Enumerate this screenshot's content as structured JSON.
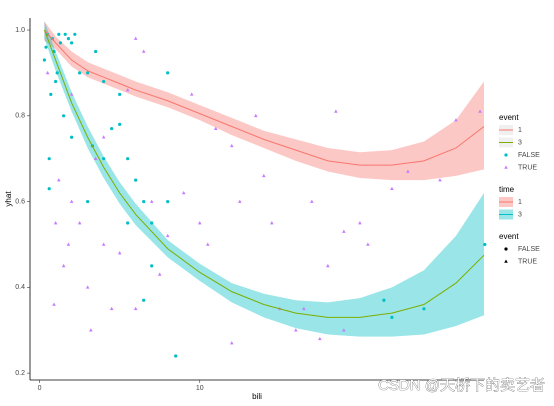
{
  "chart_data": {
    "type": "scatter",
    "x_label": "bili",
    "y_label": "yhat",
    "xlim": [
      -0.6,
      27.75
    ],
    "ylim": [
      0.184,
      1.028
    ],
    "xticks": [
      0,
      10
    ],
    "yticks": [
      0.2,
      0.4,
      0.6,
      0.8,
      {
        "value": 1,
        "label": "1.0"
      }
    ],
    "grid": false,
    "smooths": [
      {
        "name": "1",
        "line_color": "#F8766D",
        "fill_color": "#F8766D",
        "x": [
          0.3,
          1,
          2,
          3,
          4,
          5,
          6,
          8,
          10,
          12,
          14,
          16,
          18,
          20,
          22,
          24,
          26,
          27.75
        ],
        "values": [
          1.0,
          0.97,
          0.93,
          0.905,
          0.89,
          0.875,
          0.86,
          0.835,
          0.805,
          0.775,
          0.745,
          0.72,
          0.695,
          0.685,
          0.685,
          0.695,
          0.725,
          0.775
        ],
        "upper": [
          1.02,
          0.985,
          0.95,
          0.925,
          0.91,
          0.895,
          0.88,
          0.855,
          0.825,
          0.795,
          0.765,
          0.745,
          0.725,
          0.715,
          0.72,
          0.74,
          0.79,
          0.88
        ],
        "lower": [
          0.975,
          0.955,
          0.915,
          0.89,
          0.875,
          0.86,
          0.845,
          0.82,
          0.79,
          0.755,
          0.725,
          0.695,
          0.67,
          0.655,
          0.65,
          0.65,
          0.66,
          0.675
        ]
      },
      {
        "name": "3",
        "line_color": "#7CAE00",
        "fill_color": "#00BFC4",
        "x": [
          0.3,
          1,
          2,
          3,
          4,
          5,
          6,
          8,
          10,
          12,
          14,
          16,
          18,
          20,
          22,
          24,
          26,
          27.75
        ],
        "values": [
          1.0,
          0.93,
          0.83,
          0.75,
          0.68,
          0.62,
          0.57,
          0.49,
          0.435,
          0.39,
          0.36,
          0.34,
          0.33,
          0.33,
          0.34,
          0.36,
          0.41,
          0.475
        ],
        "upper": [
          1.02,
          0.95,
          0.855,
          0.775,
          0.705,
          0.645,
          0.595,
          0.51,
          0.455,
          0.41,
          0.385,
          0.37,
          0.365,
          0.375,
          0.4,
          0.44,
          0.52,
          0.62
        ],
        "lower": [
          0.98,
          0.905,
          0.81,
          0.725,
          0.655,
          0.595,
          0.545,
          0.47,
          0.415,
          0.365,
          0.33,
          0.305,
          0.29,
          0.285,
          0.285,
          0.29,
          0.31,
          0.335
        ]
      }
    ],
    "series": [
      {
        "name": "FALSE",
        "color": "#00BFC4",
        "shape": "circle",
        "x": [
          0.6,
          0.6,
          1,
          1.5,
          2,
          2.5,
          3,
          3.5,
          4,
          4.5,
          5,
          5.5,
          6,
          6.5,
          7,
          8,
          8.5,
          6.5,
          7,
          5,
          3,
          2,
          1.2,
          0.8,
          0.5,
          0.4,
          0.9,
          1.3,
          1.6,
          1.8,
          2.2,
          0.7,
          1.1,
          0.3,
          3.3,
          4,
          5.5,
          8,
          22,
          24,
          21.5,
          27.8
        ],
        "values": [
          0.7,
          0.63,
          0.88,
          0.8,
          0.75,
          0.9,
          0.9,
          0.95,
          0.88,
          0.77,
          0.78,
          0.7,
          0.65,
          0.6,
          0.55,
          0.6,
          0.24,
          0.37,
          0.45,
          0.85,
          0.6,
          0.97,
          0.99,
          0.98,
          0.99,
          0.96,
          0.95,
          0.97,
          0.99,
          0.98,
          0.99,
          0.85,
          0.9,
          0.93,
          0.73,
          0.7,
          0.55,
          0.9,
          0.33,
          0.35,
          0.37,
          0.5
        ]
      },
      {
        "name": "TRUE",
        "color": "#C77CFF",
        "shape": "triangle",
        "x": [
          0.5,
          1,
          0.9,
          1.5,
          1.8,
          2,
          2.5,
          3,
          3.5,
          4,
          4.5,
          5,
          5.5,
          6,
          6.5,
          7,
          7.5,
          8,
          9,
          10,
          10.5,
          11,
          12,
          12.5,
          13.5,
          14,
          15,
          16,
          17,
          17.5,
          18,
          18.5,
          19,
          20,
          22,
          23,
          25,
          26,
          27.5,
          16.5,
          19,
          20.5,
          4,
          2,
          1.2,
          3.2,
          6,
          12,
          14.5,
          9.5
        ],
        "values": [
          0.9,
          0.55,
          0.36,
          0.45,
          0.5,
          0.6,
          0.55,
          0.4,
          0.7,
          0.5,
          0.35,
          0.48,
          0.86,
          0.98,
          0.95,
          0.6,
          0.43,
          0.52,
          0.62,
          0.55,
          0.5,
          0.77,
          0.73,
          0.6,
          0.8,
          0.66,
          0.35,
          0.3,
          0.6,
          0.28,
          0.45,
          0.81,
          0.53,
          0.55,
          0.63,
          0.67,
          0.65,
          0.79,
          0.81,
          0.35,
          0.3,
          0.5,
          0.75,
          0.85,
          0.65,
          0.3,
          0.35,
          0.27,
          0.55,
          0.85
        ]
      }
    ],
    "legends": [
      {
        "title": "event",
        "items": [
          {
            "label": "1",
            "color": "#F8766D",
            "shape": "line"
          },
          {
            "label": "3",
            "color": "#7CAE00",
            "shape": "line"
          },
          {
            "label": "FALSE",
            "color": "#00BFC4",
            "shape": "circle"
          },
          {
            "label": "TRUE",
            "color": "#C77CFF",
            "shape": "triangle"
          }
        ]
      },
      {
        "title": "time",
        "items": [
          {
            "label": "1",
            "color": "#F8766D",
            "shape": "band"
          },
          {
            "label": "3",
            "color": "#00BFC4",
            "shape": "band"
          }
        ]
      },
      {
        "title": "event",
        "items": [
          {
            "label": "FALSE",
            "color": "#000000",
            "shape": "circle"
          },
          {
            "label": "TRUE",
            "color": "#000000",
            "shape": "triangle"
          }
        ]
      }
    ],
    "watermark": "CSDN @天桥下的卖艺者"
  }
}
